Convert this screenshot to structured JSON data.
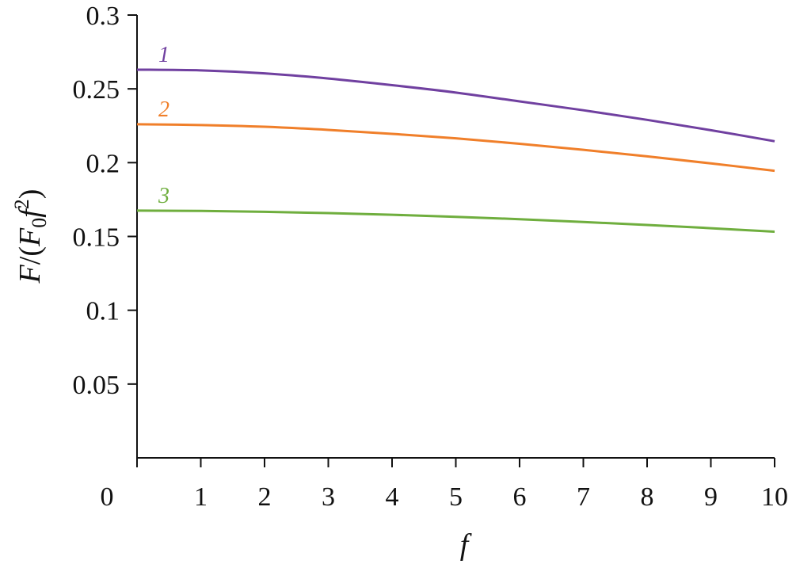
{
  "chart_data": {
    "type": "line",
    "title": "",
    "xlabel": "f",
    "ylabel": {
      "F": "F",
      "slash_paren": "/(",
      "F0": "F",
      "sub0": "0",
      "f": "f",
      "sup2": "2",
      "close": ")"
    },
    "xlim": [
      0,
      10
    ],
    "ylim": [
      0,
      0.3
    ],
    "xticks": [
      0,
      1,
      2,
      3,
      4,
      5,
      6,
      7,
      8,
      9,
      10
    ],
    "yticks": [
      0.05,
      0.1,
      0.15,
      0.2,
      0.25,
      0.3
    ],
    "xtick_labels": [
      "0",
      "1",
      "2",
      "3",
      "4",
      "5",
      "6",
      "7",
      "8",
      "9",
      "10"
    ],
    "ytick_labels": [
      "0.05",
      "0.1",
      "0.15",
      "0.2",
      "0.25",
      "0.3"
    ],
    "grid": false,
    "series": [
      {
        "name": "1",
        "color": "#7040a0",
        "x": [
          0,
          1,
          2,
          3,
          4,
          5,
          6,
          7,
          8,
          9,
          10
        ],
        "values": [
          0.263,
          0.2625,
          0.2605,
          0.257,
          0.2525,
          0.2475,
          0.2415,
          0.2355,
          0.229,
          0.222,
          0.2145
        ]
      },
      {
        "name": "2",
        "color": "#f07f2a",
        "x": [
          0,
          1,
          2,
          3,
          4,
          5,
          6,
          7,
          8,
          9,
          10
        ],
        "values": [
          0.226,
          0.2255,
          0.2243,
          0.2222,
          0.2195,
          0.2165,
          0.2128,
          0.2087,
          0.2043,
          0.1995,
          0.1945
        ]
      },
      {
        "name": "3",
        "color": "#6fae3e",
        "x": [
          0,
          1,
          2,
          3,
          4,
          5,
          6,
          7,
          8,
          9,
          10
        ],
        "values": [
          0.1675,
          0.1673,
          0.1667,
          0.1658,
          0.1647,
          0.1633,
          0.1617,
          0.1598,
          0.1578,
          0.1556,
          0.1532
        ]
      }
    ]
  }
}
